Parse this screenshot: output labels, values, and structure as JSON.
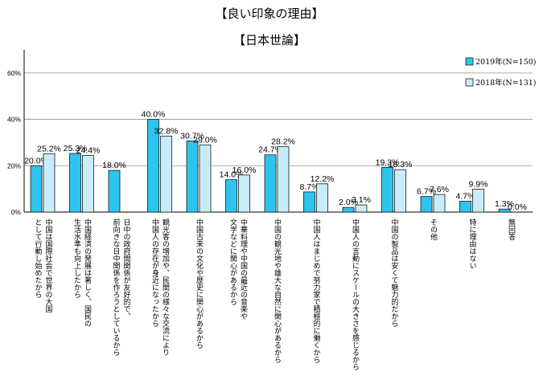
{
  "title": "【良い印象の理由】",
  "subtitle": "【日本世論】",
  "chart_data": {
    "type": "bar",
    "ylim": [
      0,
      70
    ],
    "yticks": [
      "0%",
      "20%",
      "40%",
      "60%"
    ],
    "grid": true,
    "legend_position": "right",
    "series": [
      {
        "name": "2019年(N=150)",
        "color": "#2ec4f0",
        "values": [
          20.0,
          25.3,
          18.0,
          40.0,
          30.7,
          14.0,
          24.7,
          8.7,
          2.0,
          19.3,
          6.7,
          4.7,
          1.3
        ],
        "labels": [
          "20.0%",
          "25.3%",
          "18.0%",
          "40.0%",
          "30.7%",
          "14.0%",
          "24.7%",
          "8.7%",
          "2.0%",
          "19.3%",
          "6.7%",
          "4.7%",
          "1.3%"
        ]
      },
      {
        "name": "2018年(N=131)",
        "color": "#c9ecfb",
        "values": [
          25.2,
          24.4,
          null,
          32.8,
          29.0,
          16.0,
          28.2,
          12.2,
          3.1,
          18.3,
          7.6,
          9.9,
          0.0
        ],
        "labels": [
          "25.2%",
          "24.4%",
          "",
          "32.8%",
          "29.0%",
          "16.0%",
          "28.2%",
          "12.2%",
          "3.1%",
          "18.3%",
          "7.6%",
          "9.9%",
          "0.0%"
        ]
      }
    ],
    "categories": [
      [
        "中国は国際社会で世界の大国",
        "として行動し始めたから"
      ],
      [
        "中国経済の発展は著しく、国民の",
        "生活水準も向上したから"
      ],
      [
        "日中の政府間関係が友好的で、",
        "前向きな日中関係を作ろうとしているから"
      ],
      [
        "観光客の増加や、民間の様々な交流により",
        "中国人の存在が身近になったから"
      ],
      [
        "中国古来の文化や歴史に関心があるから"
      ],
      [
        "中華料理や中国の最近の音楽や",
        "文学などに関心があるから"
      ],
      [
        "中国の観光地や雄大な自然に関心があるから"
      ],
      [
        "中国人はまじめで努力家で積極的に働くから"
      ],
      [
        "中国人の言動にスケールの大きさを感じるから"
      ],
      [
        "中国の製品は安くて魅力的だから"
      ],
      [
        "その他"
      ],
      [
        "特に理由はない"
      ],
      [
        "無回答"
      ]
    ]
  }
}
